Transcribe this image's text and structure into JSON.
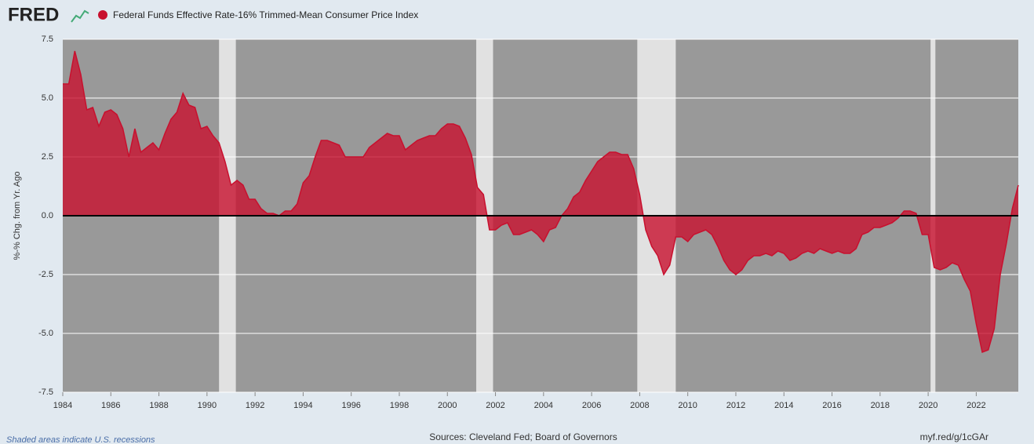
{
  "chart_data": {
    "type": "area",
    "logo": "FRED",
    "ylabel": "%-% Chg. from Yr. Ago",
    "note": "Shaded areas indicate U.S. recessions",
    "sources": "Sources: Cleveland Fed; Board of Governors",
    "link": "myf.red/g/1cGAr",
    "grid": true,
    "recession_color": "#e1e1e1",
    "plot_color": "#999999",
    "recessions": [
      [
        1990.5,
        1991.2
      ],
      [
        2001.2,
        2001.9
      ],
      [
        2007.9,
        2009.5
      ],
      [
        2020.1,
        2020.3
      ]
    ],
    "xlim": [
      1984,
      2023.75
    ],
    "xticks": [
      1984,
      1986,
      1988,
      1990,
      1992,
      1994,
      1996,
      1998,
      2000,
      2002,
      2004,
      2006,
      2008,
      2010,
      2012,
      2014,
      2016,
      2018,
      2020,
      2022
    ],
    "ylim": [
      -7.5,
      7.5
    ],
    "yticks": [
      {
        "value": -7.5,
        "label": "-7.5"
      },
      {
        "value": -5,
        "label": "-5.0"
      },
      {
        "value": -2.5,
        "label": "-2.5"
      },
      {
        "value": 0,
        "label": "0.0"
      },
      {
        "value": 2.5,
        "label": "2.5"
      },
      {
        "value": 5,
        "label": "5.0"
      },
      {
        "value": 7.5,
        "label": "7.5"
      }
    ],
    "x": [
      1984,
      1984.25,
      1984.5,
      1984.75,
      1985,
      1985.25,
      1985.5,
      1985.75,
      1986,
      1986.25,
      1986.5,
      1986.75,
      1987,
      1987.25,
      1987.5,
      1987.75,
      1988,
      1988.25,
      1988.5,
      1988.75,
      1989,
      1989.25,
      1989.5,
      1989.75,
      1990,
      1990.25,
      1990.5,
      1990.75,
      1991,
      1991.25,
      1991.5,
      1991.75,
      1992,
      1992.25,
      1992.5,
      1992.75,
      1993,
      1993.25,
      1993.5,
      1993.75,
      1994,
      1994.25,
      1994.5,
      1994.75,
      1995,
      1995.25,
      1995.5,
      1995.75,
      1996,
      1996.25,
      1996.5,
      1996.75,
      1997,
      1997.25,
      1997.5,
      1997.75,
      1998,
      1998.25,
      1998.5,
      1998.75,
      1999,
      1999.25,
      1999.5,
      1999.75,
      2000,
      2000.25,
      2000.5,
      2000.75,
      2001,
      2001.25,
      2001.5,
      2001.75,
      2002,
      2002.25,
      2002.5,
      2002.75,
      2003,
      2003.25,
      2003.5,
      2003.75,
      2004,
      2004.25,
      2004.5,
      2004.75,
      2005,
      2005.25,
      2005.5,
      2005.75,
      2006,
      2006.25,
      2006.5,
      2006.75,
      2007,
      2007.25,
      2007.5,
      2007.75,
      2008,
      2008.25,
      2008.5,
      2008.75,
      2009,
      2009.25,
      2009.5,
      2009.75,
      2010,
      2010.25,
      2010.5,
      2010.75,
      2011,
      2011.25,
      2011.5,
      2011.75,
      2012,
      2012.25,
      2012.5,
      2012.75,
      2013,
      2013.25,
      2013.5,
      2013.75,
      2014,
      2014.25,
      2014.5,
      2014.75,
      2015,
      2015.25,
      2015.5,
      2015.75,
      2016,
      2016.25,
      2016.5,
      2016.75,
      2017,
      2017.25,
      2017.5,
      2017.75,
      2018,
      2018.25,
      2018.5,
      2018.75,
      2019,
      2019.25,
      2019.5,
      2019.75,
      2020,
      2020.25,
      2020.5,
      2020.75,
      2021,
      2021.25,
      2021.5,
      2021.75,
      2022,
      2022.25,
      2022.5,
      2022.75,
      2023,
      2023.25,
      2023.5,
      2023.75
    ],
    "series": [
      {
        "name": "Federal Funds Effective Rate-16% Trimmed-Mean Consumer Price Index",
        "color": "#c8102e",
        "values": [
          5.6,
          5.6,
          7.0,
          6.0,
          4.5,
          4.6,
          3.8,
          4.4,
          4.5,
          4.3,
          3.7,
          2.5,
          3.7,
          2.7,
          2.9,
          3.1,
          2.8,
          3.5,
          4.1,
          4.4,
          5.2,
          4.7,
          4.6,
          3.7,
          3.8,
          3.4,
          3.1,
          2.3,
          1.3,
          1.5,
          1.3,
          0.7,
          0.7,
          0.3,
          0.1,
          0.1,
          0.0,
          0.2,
          0.2,
          0.5,
          1.4,
          1.7,
          2.5,
          3.2,
          3.2,
          3.1,
          3.0,
          2.5,
          2.5,
          2.5,
          2.5,
          2.9,
          3.1,
          3.3,
          3.5,
          3.4,
          3.4,
          2.8,
          3.0,
          3.2,
          3.3,
          3.4,
          3.4,
          3.7,
          3.9,
          3.9,
          3.8,
          3.3,
          2.6,
          1.2,
          0.9,
          -0.6,
          -0.6,
          -0.4,
          -0.3,
          -0.8,
          -0.8,
          -0.7,
          -0.6,
          -0.8,
          -1.1,
          -0.6,
          -0.5,
          0.0,
          0.3,
          0.8,
          1.0,
          1.5,
          1.9,
          2.3,
          2.5,
          2.7,
          2.7,
          2.6,
          2.6,
          2.0,
          0.9,
          -0.6,
          -1.3,
          -1.7,
          -2.5,
          -2.1,
          -0.9,
          -0.9,
          -1.1,
          -0.8,
          -0.7,
          -0.6,
          -0.8,
          -1.3,
          -1.9,
          -2.3,
          -2.5,
          -2.3,
          -1.9,
          -1.7,
          -1.7,
          -1.6,
          -1.7,
          -1.5,
          -1.6,
          -1.9,
          -1.8,
          -1.6,
          -1.5,
          -1.6,
          -1.4,
          -1.5,
          -1.6,
          -1.5,
          -1.6,
          -1.6,
          -1.4,
          -0.8,
          -0.7,
          -0.5,
          -0.5,
          -0.4,
          -0.3,
          -0.1,
          0.2,
          0.2,
          0.1,
          -0.8,
          -0.8,
          -2.2,
          -2.3,
          -2.2,
          -2.0,
          -2.1,
          -2.7,
          -3.2,
          -4.6,
          -5.8,
          -5.7,
          -4.8,
          -2.5,
          -1.2,
          0.3,
          1.3
        ]
      }
    ]
  }
}
